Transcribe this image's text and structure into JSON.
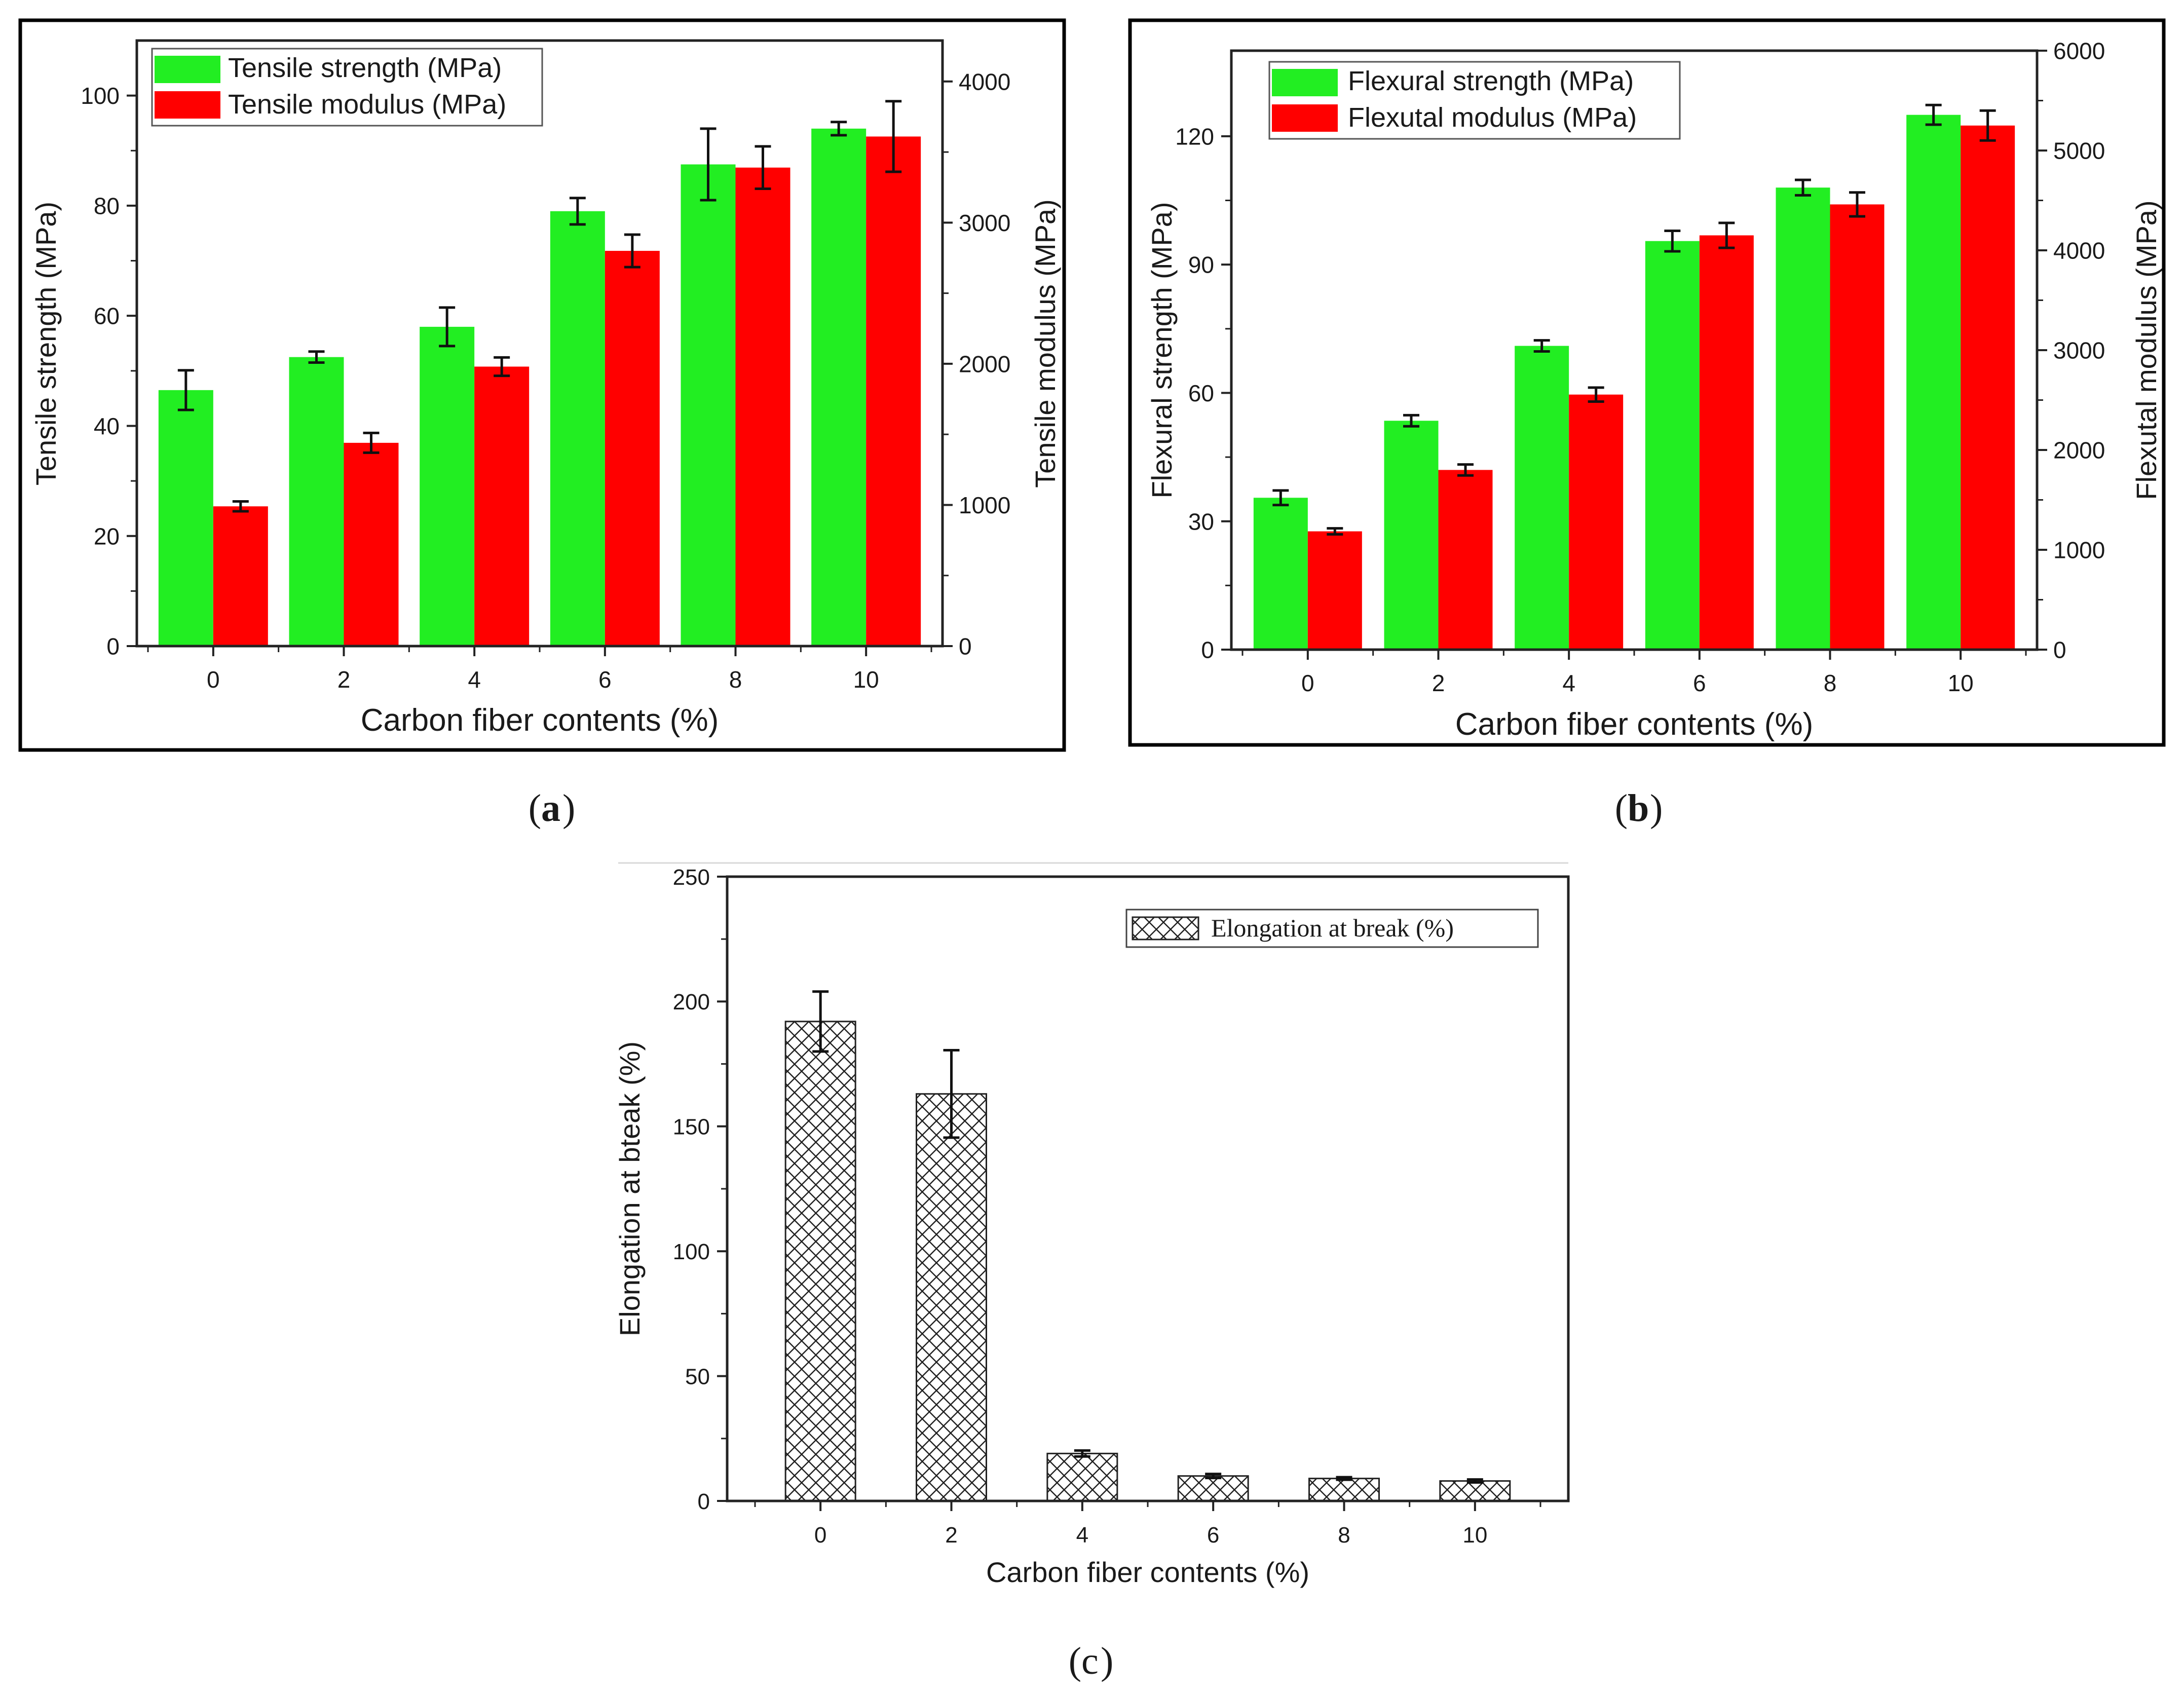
{
  "chart_data": [
    {
      "id": "a",
      "type": "bar",
      "panel_label": "a",
      "xlabel": "Carbon fiber contents (%)",
      "ylabel_left": "Tensile strength (MPa)",
      "ylabel_right": "Tensile modulus (MPa)",
      "categories": [
        "0",
        "2",
        "4",
        "6",
        "8",
        "10"
      ],
      "ylim_left": [
        0,
        110
      ],
      "ylim_right": [
        0,
        4290
      ],
      "yticks_left": [
        0,
        20,
        40,
        60,
        80,
        100
      ],
      "yticks_right": [
        0,
        1000,
        2000,
        3000,
        4000
      ],
      "legend_position": "top-left",
      "series": [
        {
          "name": "Tensile strength (MPa)",
          "axis": "left",
          "color": "#22ee22",
          "values": [
            46.5,
            52.5,
            58,
            79,
            87.5,
            94
          ],
          "errors": [
            3.6,
            1.0,
            3.5,
            2.4,
            6.5,
            1.2
          ]
        },
        {
          "name": "Tensile modulus (MPa)",
          "axis": "right",
          "color": "#ff0000",
          "values": [
            990,
            1440,
            1980,
            2800,
            3390,
            3610
          ],
          "errors": [
            35,
            70,
            65,
            115,
            150,
            250
          ]
        }
      ]
    },
    {
      "id": "b",
      "type": "bar",
      "panel_label": "b",
      "xlabel": "Carbon fiber contents (%)",
      "ylabel_left": "Flexural strength (MPa)",
      "ylabel_right": "Flexutal modulus (MPa)",
      "categories": [
        "0",
        "2",
        "4",
        "6",
        "8",
        "10"
      ],
      "ylim_left": [
        0,
        140
      ],
      "ylim_right": [
        0,
        6000
      ],
      "yticks_left": [
        0,
        30,
        60,
        90,
        120
      ],
      "yticks_right": [
        0,
        1000,
        2000,
        3000,
        4000,
        5000,
        6000
      ],
      "legend_position": "top-left",
      "series": [
        {
          "name": "Flexural strength (MPa)",
          "axis": "left",
          "color": "#22ee22",
          "values": [
            35.5,
            53.5,
            71,
            95.5,
            108,
            125
          ],
          "errors": [
            1.7,
            1.3,
            1.3,
            2.4,
            1.8,
            2.3
          ]
        },
        {
          "name": "Flexutal modulus (MPa)",
          "axis": "right",
          "color": "#ff0000",
          "values": [
            1185,
            1800,
            2555,
            4150,
            4460,
            5250
          ],
          "errors": [
            30,
            55,
            70,
            125,
            120,
            150
          ]
        }
      ]
    },
    {
      "id": "c",
      "type": "bar",
      "panel_label": "c",
      "xlabel": "Carbon fiber contents (%)",
      "ylabel": "Elongation at bteak (%)",
      "categories": [
        "0",
        "2",
        "4",
        "6",
        "8",
        "10"
      ],
      "ylim": [
        0,
        250
      ],
      "yticks": [
        0,
        50,
        100,
        150,
        200,
        250
      ],
      "legend_position": "top-right",
      "series": [
        {
          "name": "Elongation at break  (%)",
          "pattern": "crosshatch",
          "values": [
            192,
            163,
            19,
            10,
            9,
            8
          ],
          "errors": [
            12,
            17.5,
            1.2,
            0.8,
            0.5,
            0.6
          ]
        }
      ]
    }
  ]
}
